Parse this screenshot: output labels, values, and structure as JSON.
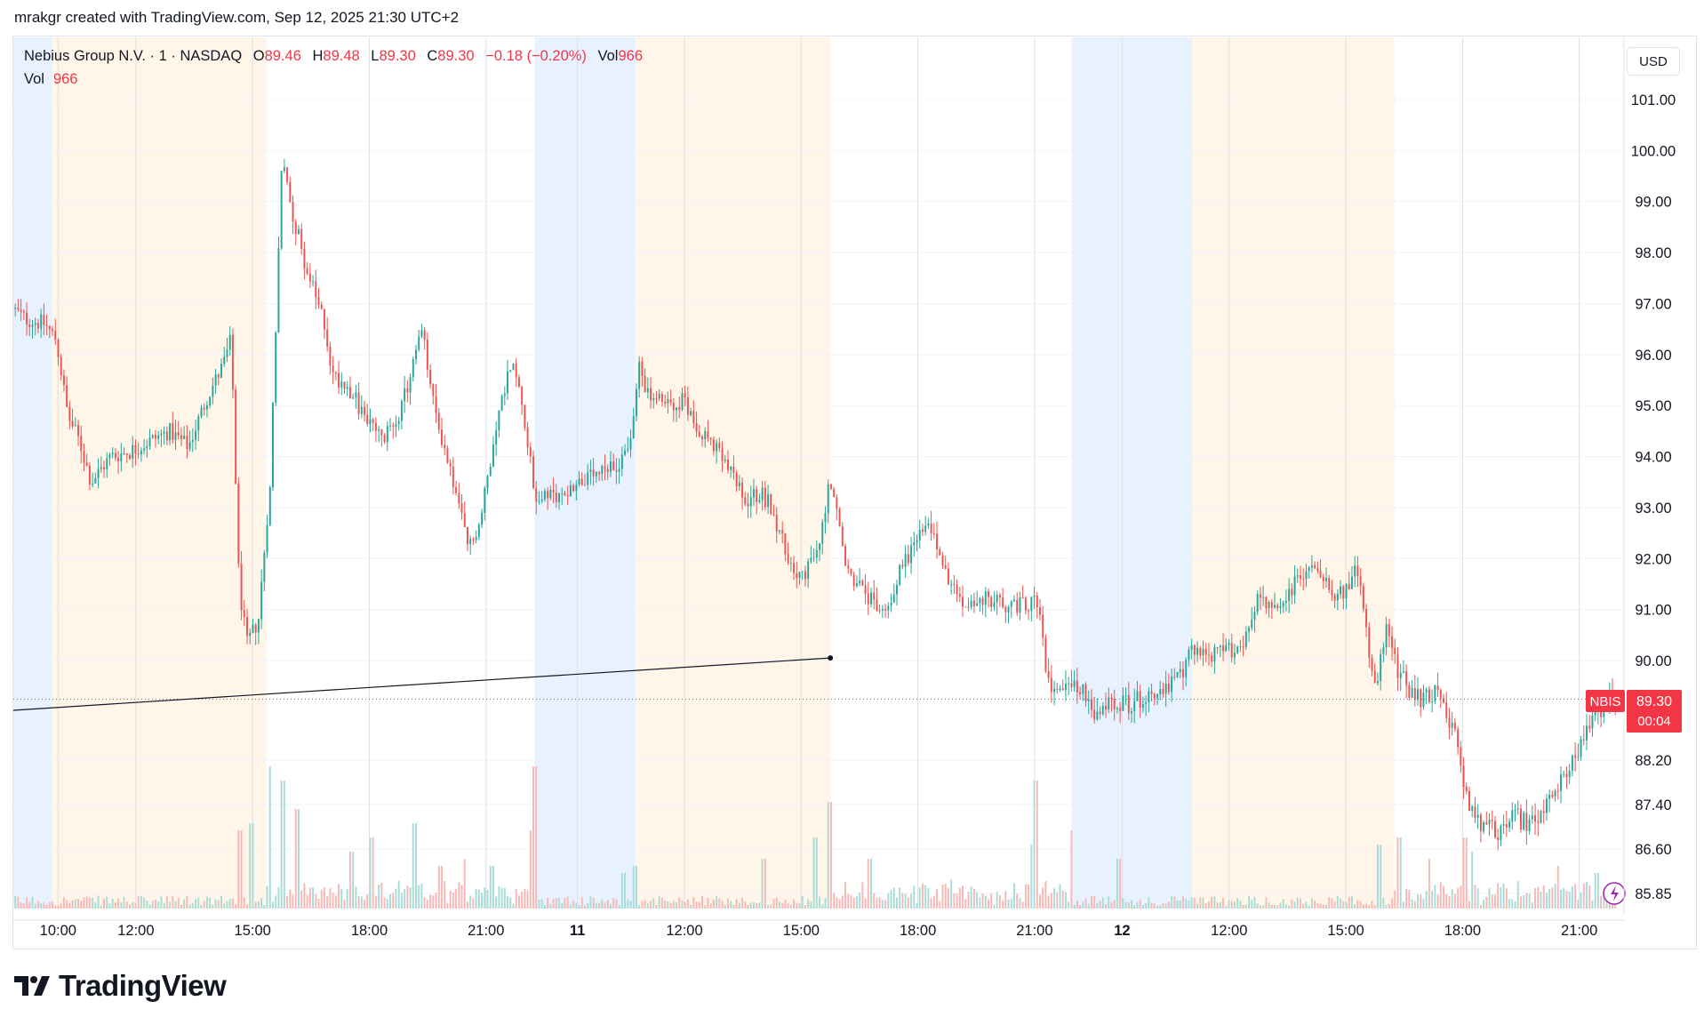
{
  "header": {
    "credit": "mrakgr created with TradingView.com, Sep 12, 2025 21:30 UTC+2"
  },
  "legend": {
    "symbol": "Nebius Group N.V. · 1 · NASDAQ",
    "o_label": "O",
    "o_value": "89.46",
    "h_label": "H",
    "h_value": "89.48",
    "l_label": "L",
    "l_value": "89.30",
    "c_label": "C",
    "c_value": "89.30",
    "change": "−0.18 (−0.20%)",
    "vol_label": "Vol",
    "vol_value": "966",
    "vol_row_label": "Vol",
    "vol_row_value": "966"
  },
  "currency": "USD",
  "price_tag": {
    "ticker": "NBIS",
    "price": "89.30",
    "countdown": "00:04"
  },
  "brand": {
    "name": "TradingView"
  },
  "colors": {
    "up": "#26a69a",
    "down": "#ef5350",
    "premarket": "#fff5e8",
    "postmarket": "#e8f2fe",
    "tag": "#f23645"
  },
  "chart_data": {
    "type": "candlestick",
    "symbol": "NBIS",
    "interval": "1",
    "y_ticks": [
      101.0,
      100.0,
      99.0,
      98.0,
      97.0,
      96.0,
      95.0,
      94.0,
      93.0,
      92.0,
      91.0,
      90.0,
      88.2,
      87.4,
      86.6,
      85.85
    ],
    "y_tick_labels": [
      "101.00",
      "100.00",
      "99.00",
      "98.00",
      "97.00",
      "96.00",
      "95.00",
      "94.00",
      "93.00",
      "92.00",
      "91.00",
      "90.00",
      "88.20",
      "87.40",
      "86.60",
      "85.85"
    ],
    "x_ticks": [
      {
        "label": "10:00",
        "t": 1.15
      },
      {
        "label": "12:00",
        "t": 3.15
      },
      {
        "label": "15:00",
        "t": 6.15
      },
      {
        "label": "18:00",
        "t": 9.15
      },
      {
        "label": "21:00",
        "t": 12.15
      },
      {
        "label": "11",
        "t": 14.5
      },
      {
        "label": "12:00",
        "t": 17.25
      },
      {
        "label": "15:00",
        "t": 20.25
      },
      {
        "label": "18:00",
        "t": 23.25
      },
      {
        "label": "21:00",
        "t": 26.25
      },
      {
        "label": "12",
        "t": 28.5
      },
      {
        "label": "12:00",
        "t": 31.25
      },
      {
        "label": "15:00",
        "t": 34.25
      },
      {
        "label": "18:00",
        "t": 37.25
      },
      {
        "label": "21:00",
        "t": 40.25
      }
    ],
    "sessions": [
      {
        "type": "post",
        "t0": 0,
        "t1": 1.0
      },
      {
        "type": "pre",
        "t0": 1.0,
        "t1": 6.5
      },
      {
        "type": "post",
        "t0": 13.4,
        "t1": 16.0
      },
      {
        "type": "pre",
        "t0": 16.0,
        "t1": 21.0
      },
      {
        "type": "post",
        "t0": 27.2,
        "t1": 30.3
      },
      {
        "type": "pre",
        "t0": 30.3,
        "t1": 35.5
      }
    ],
    "price_path": [
      [
        0,
        96.9
      ],
      [
        0.3,
        96.7
      ],
      [
        0.8,
        96.6
      ],
      [
        1.1,
        96.3
      ],
      [
        1.4,
        94.8
      ],
      [
        1.7,
        94.3
      ],
      [
        2.0,
        93.5
      ],
      [
        2.5,
        94.0
      ],
      [
        3.0,
        94.1
      ],
      [
        3.5,
        94.3
      ],
      [
        4.0,
        94.5
      ],
      [
        4.5,
        94.2
      ],
      [
        5.0,
        95.2
      ],
      [
        5.4,
        95.8
      ],
      [
        5.6,
        96.3
      ],
      [
        5.8,
        91.5
      ],
      [
        6.0,
        90.3
      ],
      [
        6.3,
        90.8
      ],
      [
        6.6,
        93.5
      ],
      [
        6.9,
        99.8
      ],
      [
        7.2,
        98.7
      ],
      [
        7.6,
        97.5
      ],
      [
        8.0,
        96.6
      ],
      [
        8.2,
        95.6
      ],
      [
        8.6,
        95.4
      ],
      [
        9.0,
        94.8
      ],
      [
        9.5,
        94.3
      ],
      [
        10.0,
        95.0
      ],
      [
        10.5,
        96.5
      ],
      [
        10.8,
        95.0
      ],
      [
        11.3,
        93.5
      ],
      [
        11.7,
        92.2
      ],
      [
        12.0,
        92.7
      ],
      [
        12.4,
        94.6
      ],
      [
        12.8,
        95.9
      ],
      [
        13.1,
        95.0
      ],
      [
        13.4,
        93.2
      ],
      [
        14.0,
        93.2
      ],
      [
        14.5,
        93.5
      ],
      [
        15.0,
        93.6
      ],
      [
        15.5,
        93.8
      ],
      [
        15.9,
        94.4
      ],
      [
        16.1,
        95.9
      ],
      [
        16.3,
        95.2
      ],
      [
        16.8,
        95.0
      ],
      [
        17.2,
        95.1
      ],
      [
        17.6,
        94.6
      ],
      [
        18.0,
        94.2
      ],
      [
        18.5,
        93.6
      ],
      [
        18.8,
        93.1
      ],
      [
        19.2,
        93.3
      ],
      [
        19.5,
        93.0
      ],
      [
        19.9,
        92.0
      ],
      [
        20.3,
        91.6
      ],
      [
        20.7,
        92.2
      ],
      [
        21.0,
        93.6
      ],
      [
        21.4,
        91.8
      ],
      [
        22.0,
        91.2
      ],
      [
        22.4,
        90.9
      ],
      [
        22.8,
        91.8
      ],
      [
        23.3,
        92.5
      ],
      [
        23.6,
        92.6
      ],
      [
        24.0,
        91.6
      ],
      [
        24.4,
        91.1
      ],
      [
        25.0,
        91.2
      ],
      [
        25.5,
        91.1
      ],
      [
        26.0,
        91.1
      ],
      [
        26.3,
        91.2
      ],
      [
        26.6,
        89.6
      ],
      [
        27.0,
        89.6
      ],
      [
        27.4,
        89.6
      ],
      [
        27.8,
        88.9
      ],
      [
        28.2,
        89.3
      ],
      [
        28.7,
        89.2
      ],
      [
        29.2,
        89.4
      ],
      [
        29.7,
        89.5
      ],
      [
        30.1,
        89.8
      ],
      [
        30.3,
        90.3
      ],
      [
        30.7,
        90.1
      ],
      [
        31.2,
        90.2
      ],
      [
        31.6,
        90.3
      ],
      [
        32.0,
        91.3
      ],
      [
        32.5,
        90.9
      ],
      [
        33.0,
        91.6
      ],
      [
        33.5,
        91.9
      ],
      [
        34.0,
        91.3
      ],
      [
        34.3,
        91.4
      ],
      [
        34.5,
        91.8
      ],
      [
        34.7,
        91.0
      ],
      [
        35.0,
        89.4
      ],
      [
        35.3,
        90.6
      ],
      [
        35.6,
        89.8
      ],
      [
        36.0,
        89.3
      ],
      [
        36.5,
        89.4
      ],
      [
        36.8,
        89.2
      ],
      [
        37.1,
        88.5
      ],
      [
        37.4,
        87.3
      ],
      [
        37.8,
        87.0
      ],
      [
        38.2,
        86.9
      ],
      [
        38.6,
        87.2
      ],
      [
        39.0,
        87.0
      ],
      [
        39.4,
        87.4
      ],
      [
        39.8,
        87.9
      ],
      [
        40.2,
        88.3
      ],
      [
        40.6,
        88.9
      ],
      [
        41.0,
        89.3
      ]
    ],
    "volume_spikes": [
      [
        5.8,
        0.55
      ],
      [
        6.1,
        0.6
      ],
      [
        6.6,
        1.0
      ],
      [
        6.9,
        0.9
      ],
      [
        7.3,
        0.7
      ],
      [
        8.7,
        0.4
      ],
      [
        9.2,
        0.5
      ],
      [
        10.3,
        0.6
      ],
      [
        11.0,
        0.3
      ],
      [
        11.6,
        0.35
      ],
      [
        12.3,
        0.3
      ],
      [
        13.4,
        1.0
      ],
      [
        13.3,
        0.55
      ],
      [
        15.7,
        0.25
      ],
      [
        16.0,
        0.3
      ],
      [
        19.3,
        0.35
      ],
      [
        20.6,
        0.5
      ],
      [
        21.0,
        0.75
      ],
      [
        22.0,
        0.35
      ],
      [
        26.2,
        0.45
      ],
      [
        26.3,
        0.9
      ],
      [
        27.2,
        0.55
      ],
      [
        28.4,
        0.35
      ],
      [
        35.1,
        0.45
      ],
      [
        35.6,
        0.5
      ],
      [
        36.4,
        0.35
      ],
      [
        37.3,
        0.5
      ],
      [
        37.5,
        0.4
      ],
      [
        39.7,
        0.3
      ],
      [
        40.7,
        0.25
      ]
    ],
    "trendline": {
      "start": {
        "t": 0,
        "price": 89.1
      },
      "end": {
        "t": 21.0,
        "price": 90.05
      }
    },
    "last_price": 89.3,
    "n_bars": 560
  }
}
